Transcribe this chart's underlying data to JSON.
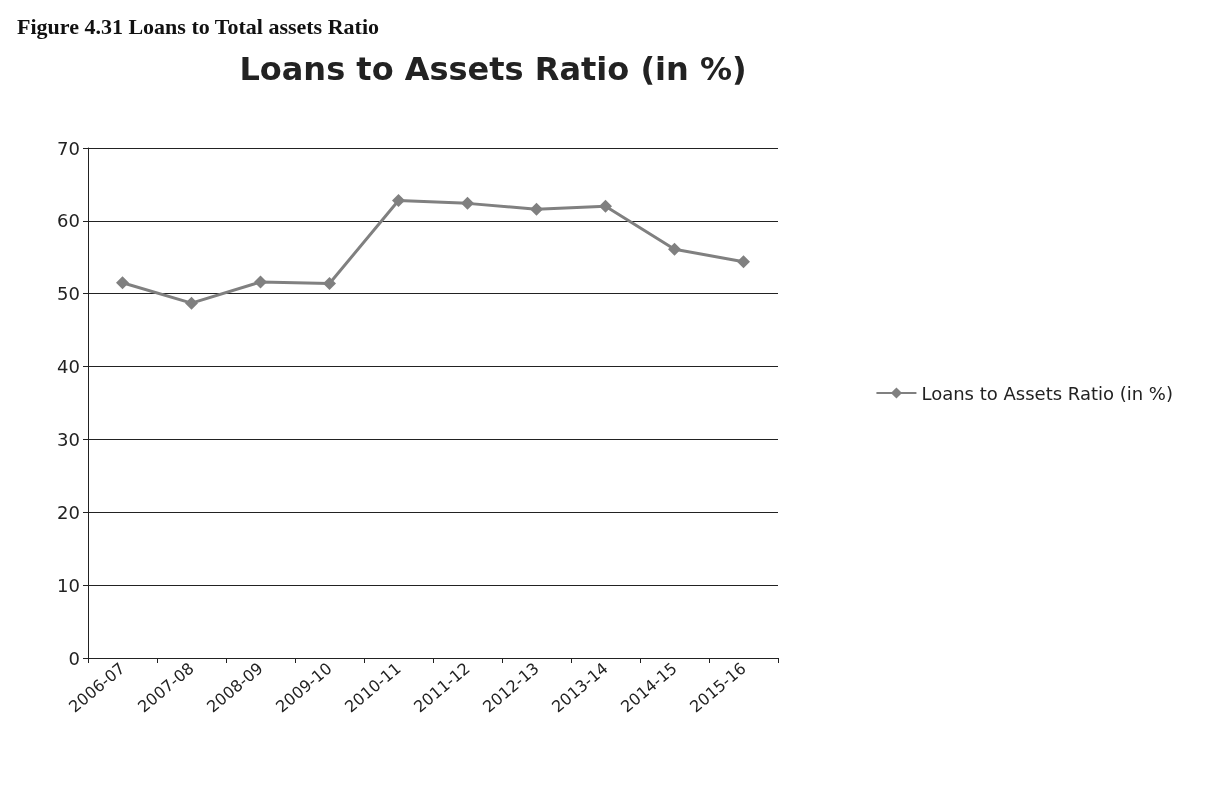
{
  "chart_data": {
    "type": "line",
    "title": "Loans to Assets Ratio (in %)",
    "annotations": [
      "Figure 4.31 Loans to Total assets Ratio"
    ],
    "categories": [
      "2006-07",
      "2007-08",
      "2008-09",
      "2009-10",
      "2010-11",
      "2011-12",
      "2012-13",
      "2013-14",
      "2014-15",
      "2015-16"
    ],
    "series": [
      {
        "name": "Loans to Assets Ratio (in %)",
        "color": "#808080",
        "values": [
          51.5,
          48.7,
          51.6,
          51.4,
          62.8,
          62.4,
          61.6,
          62,
          56.1,
          54.4
        ]
      }
    ],
    "ylim": [
      0,
      70
    ],
    "yticks": [
      0,
      10,
      20,
      30,
      40,
      50,
      60,
      70
    ],
    "grid": "y",
    "legend": "right",
    "marker": "diamond",
    "line_style": "solid"
  }
}
